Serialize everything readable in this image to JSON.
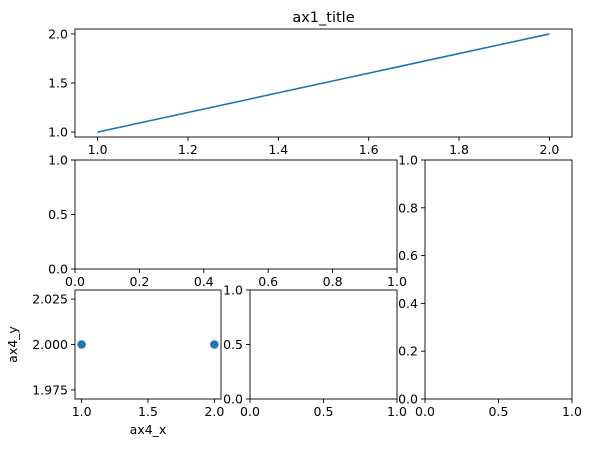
{
  "chart_data": [
    {
      "id": "ax1",
      "type": "line",
      "title": "ax1_title",
      "xlabel": "",
      "ylabel": "",
      "xlim": [
        0.95,
        2.05
      ],
      "ylim": [
        0.95,
        2.05
      ],
      "xticks": [
        1.0,
        1.2,
        1.4,
        1.6,
        1.8,
        2.0
      ],
      "xtick_labels": [
        "1.0",
        "1.2",
        "1.4",
        "1.6",
        "1.8",
        "2.0"
      ],
      "yticks": [
        1.0,
        1.5,
        2.0
      ],
      "ytick_labels": [
        "1.0",
        "1.5",
        "2.0"
      ],
      "series": [
        {
          "x": [
            1.0,
            2.0
          ],
          "y": [
            1.0,
            2.0
          ],
          "color": "#1f77b4"
        }
      ]
    },
    {
      "id": "ax2",
      "type": "line",
      "title": "",
      "xlabel": "",
      "ylabel": "",
      "xlim": [
        0,
        1
      ],
      "ylim": [
        0,
        1
      ],
      "xticks": [
        0.0,
        0.2,
        0.4,
        0.6,
        0.8,
        1.0
      ],
      "xtick_labels": [
        "0.0",
        "0.2",
        "0.4",
        "0.6",
        "0.8",
        "1.0"
      ],
      "yticks": [
        0.0,
        0.5,
        1.0
      ],
      "ytick_labels": [
        "0.0",
        "0.5",
        "1.0"
      ],
      "series": []
    },
    {
      "id": "ax3",
      "type": "line",
      "title": "",
      "xlabel": "",
      "ylabel": "",
      "xlim": [
        0,
        1
      ],
      "ylim": [
        0,
        1
      ],
      "xticks": [
        0.0,
        0.5,
        1.0
      ],
      "xtick_labels": [
        "0.0",
        "0.5",
        "1.0"
      ],
      "yticks": [
        0.0,
        0.2,
        0.4,
        0.6,
        0.8,
        1.0
      ],
      "ytick_labels": [
        "0.0",
        "0.2",
        "0.4",
        "0.6",
        "0.8",
        "1.0"
      ],
      "series": []
    },
    {
      "id": "ax4",
      "type": "scatter",
      "title": "",
      "xlabel": "ax4_x",
      "ylabel": "ax4_y",
      "xlim": [
        0.95,
        2.05
      ],
      "ylim": [
        1.97,
        2.03
      ],
      "xticks": [
        1.0,
        1.5,
        2.0
      ],
      "xtick_labels": [
        "1.0",
        "1.5",
        "2.0"
      ],
      "yticks": [
        1.975,
        2.0,
        2.025
      ],
      "ytick_labels": [
        "1.975",
        "2.000",
        "2.025"
      ],
      "series": [
        {
          "x": [
            1.0,
            2.0
          ],
          "y": [
            2.0,
            2.0
          ],
          "color": "#1f77b4"
        }
      ]
    },
    {
      "id": "ax5",
      "type": "line",
      "title": "",
      "xlabel": "",
      "ylabel": "",
      "xlim": [
        0,
        1
      ],
      "ylim": [
        0,
        1
      ],
      "xticks": [
        0.0,
        0.5,
        1.0
      ],
      "xtick_labels": [
        "0.0",
        "0.5",
        "1.0"
      ],
      "yticks": [
        0.0,
        0.5,
        1.0
      ],
      "ytick_labels": [
        "0.0",
        "0.5",
        "1.0"
      ],
      "series": []
    }
  ]
}
